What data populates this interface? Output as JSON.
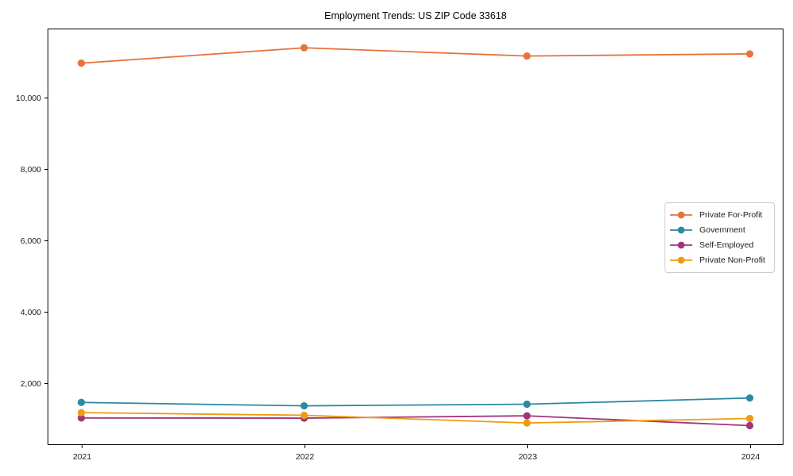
{
  "chart_data": {
    "type": "line",
    "title": "Employment Trends: US ZIP Code 33618",
    "x_labels": [
      "2021",
      "2022",
      "2023",
      "2024"
    ],
    "series": [
      {
        "name": "Private For-Profit",
        "color": "#e6733e",
        "values": [
          10970,
          11400,
          11170,
          11230
        ]
      },
      {
        "name": "Government",
        "color": "#2c89a4",
        "values": [
          1455,
          1360,
          1405,
          1580
        ]
      },
      {
        "name": "Self-Employed",
        "color": "#a0357e",
        "values": [
          1020,
          1015,
          1080,
          805
        ]
      },
      {
        "name": "Private Non-Profit",
        "color": "#ee9c10",
        "values": [
          1170,
          1095,
          880,
          1005
        ]
      }
    ],
    "xlabel": "",
    "ylabel": "",
    "yticks": [
      2000,
      4000,
      6000,
      8000,
      10000
    ],
    "ytick_labels": [
      "2,000",
      "4,000",
      "6,000",
      "8,000",
      "10,000"
    ],
    "ylim": [
      260,
      11940
    ],
    "grid": false,
    "legend_position": "center right",
    "axis_color": "#000000",
    "tick_label_color": "#1a1a1a"
  }
}
